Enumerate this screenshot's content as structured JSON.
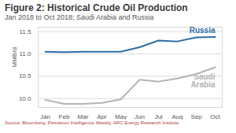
{
  "chart_data": {
    "type": "line",
    "title": "Figure 2: Historical Crude Oil Production",
    "subtitle": "Jan 2018 to Oct 2018; Saudi Arabia and Russia",
    "y_label": "MMB/d",
    "source": "Source: Bloomberg, Petroleum Intelligence Weekly, ARC Energy Research Institute",
    "categories": [
      "Jan",
      "Feb",
      "Mar",
      "Apr",
      "May",
      "Jun",
      "Jul",
      "Aug",
      "Sep",
      "Oct"
    ],
    "series": [
      {
        "name": "Russia",
        "color": "#2e6ea6",
        "values": [
          11.05,
          11.04,
          11.05,
          11.05,
          11.05,
          11.15,
          11.3,
          11.28,
          11.37,
          11.38
        ]
      },
      {
        "name": "Saudi Arabia",
        "color": "#b3b3b3",
        "values": [
          9.97,
          9.88,
          9.88,
          9.9,
          9.98,
          10.42,
          10.38,
          10.45,
          10.55,
          10.7
        ]
      }
    ],
    "ylim": [
      9.8,
      11.6
    ],
    "yticks": [
      {
        "value": 10,
        "label": "10.0"
      },
      10.5,
      {
        "value": 11,
        "label": "11.0"
      },
      11.5
    ],
    "grid": true
  }
}
